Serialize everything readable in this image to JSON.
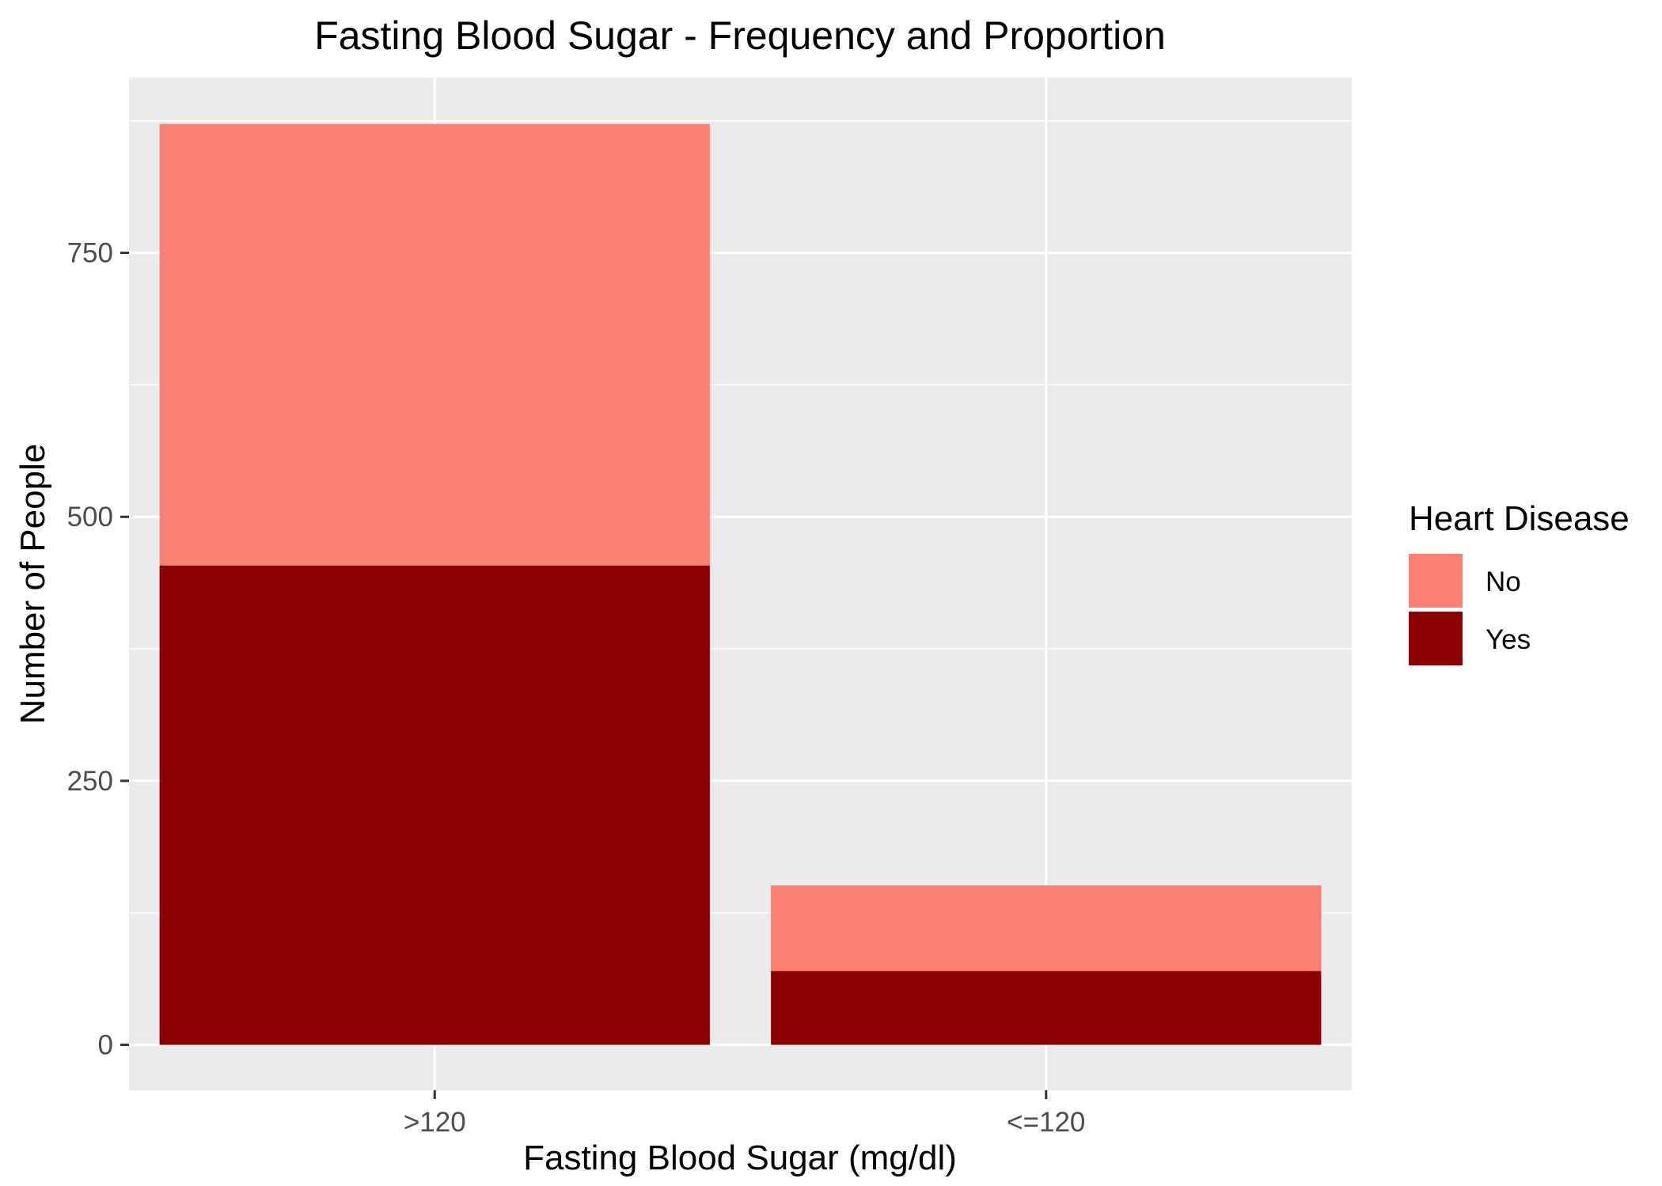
{
  "chart_data": {
    "type": "bar",
    "stacked": true,
    "title": "Fasting Blood Sugar - Frequency and Proportion",
    "xlabel": "Fasting Blood Sugar (mg/dl)",
    "ylabel": "Number of People",
    "categories": [
      ">120",
      "<=120"
    ],
    "series": [
      {
        "name": "Yes",
        "values": [
          454,
          70
        ],
        "color": "#8b0000"
      },
      {
        "name": "No",
        "values": [
          418,
          81
        ],
        "color": "#fa8072"
      }
    ],
    "ylim": [
      -43,
      916
    ],
    "yticks": [
      0,
      250,
      500,
      750
    ],
    "legend": {
      "title": "Heart Disease",
      "order": [
        "No",
        "Yes"
      ],
      "position": "right"
    },
    "grid": true,
    "panel_background": "#ebebeb"
  }
}
